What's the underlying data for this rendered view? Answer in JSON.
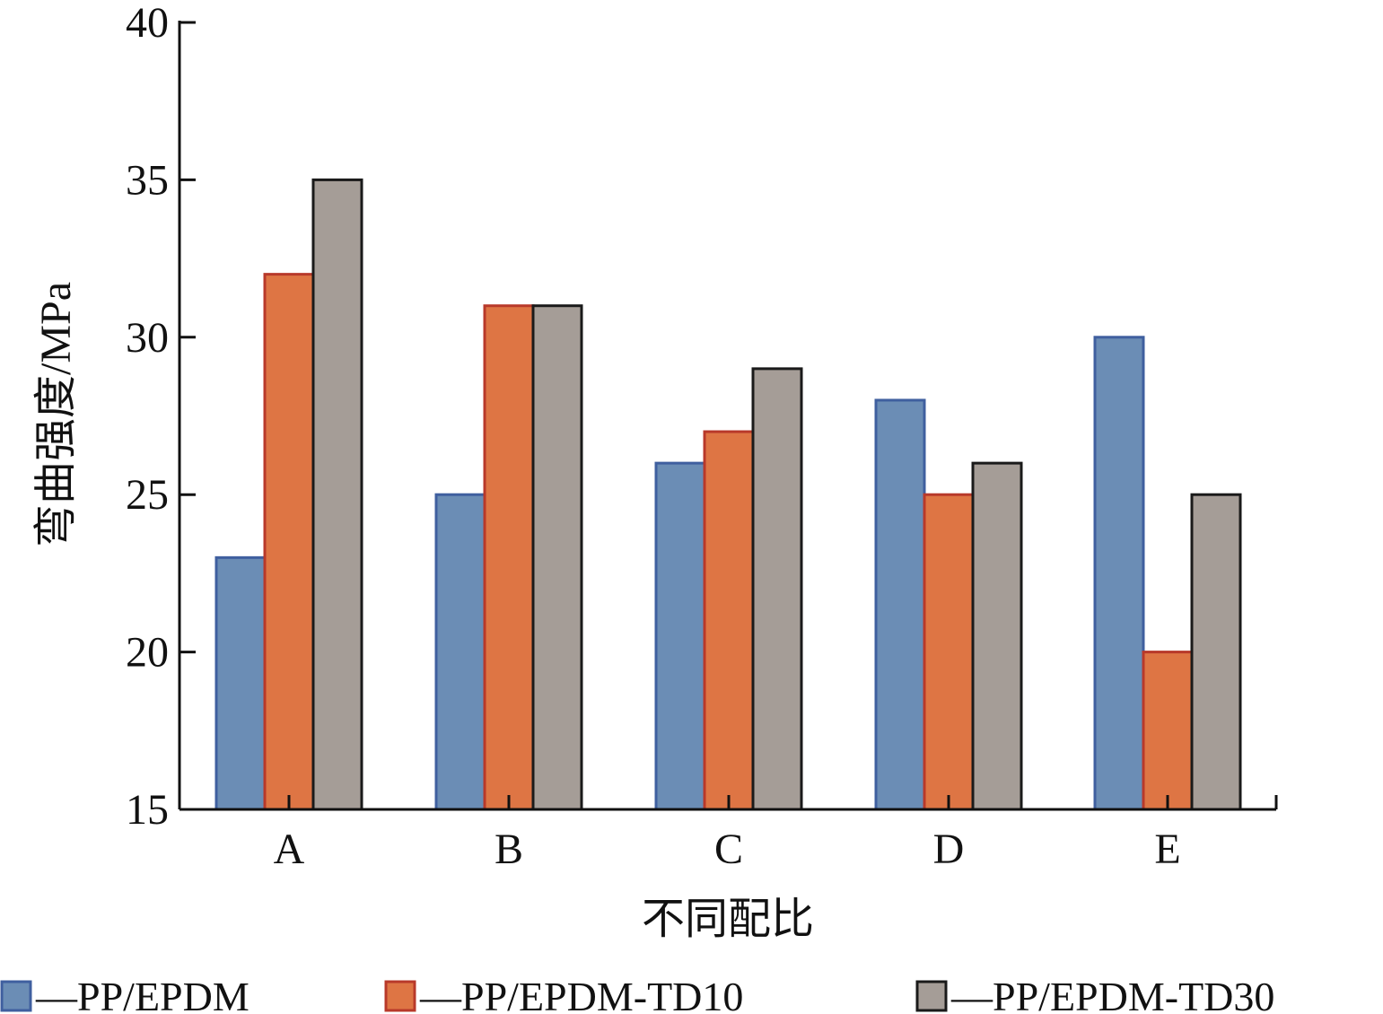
{
  "chart_data": {
    "type": "bar",
    "title": "",
    "xlabel": "不同配比",
    "ylabel": "弯曲强度/MPa",
    "categories": [
      "A",
      "B",
      "C",
      "D",
      "E"
    ],
    "ylim": [
      15,
      40
    ],
    "yticks": [
      15,
      20,
      25,
      30,
      35,
      40
    ],
    "grid": false,
    "legend_position": "bottom",
    "series": [
      {
        "name": "—PP/EPDM",
        "values": [
          23,
          25,
          26,
          28,
          30
        ],
        "fill": "#6b8db5",
        "stroke": "#3f5f9f"
      },
      {
        "name": "—PP/EPDM-TD10",
        "values": [
          32,
          31,
          27,
          25,
          20
        ],
        "fill": "#de7544",
        "stroke": "#b8392a"
      },
      {
        "name": "—PP/EPDM-TD30",
        "values": [
          35,
          31,
          29,
          26,
          25
        ],
        "fill": "#a59d97",
        "stroke": "#1a1a1a"
      }
    ]
  }
}
